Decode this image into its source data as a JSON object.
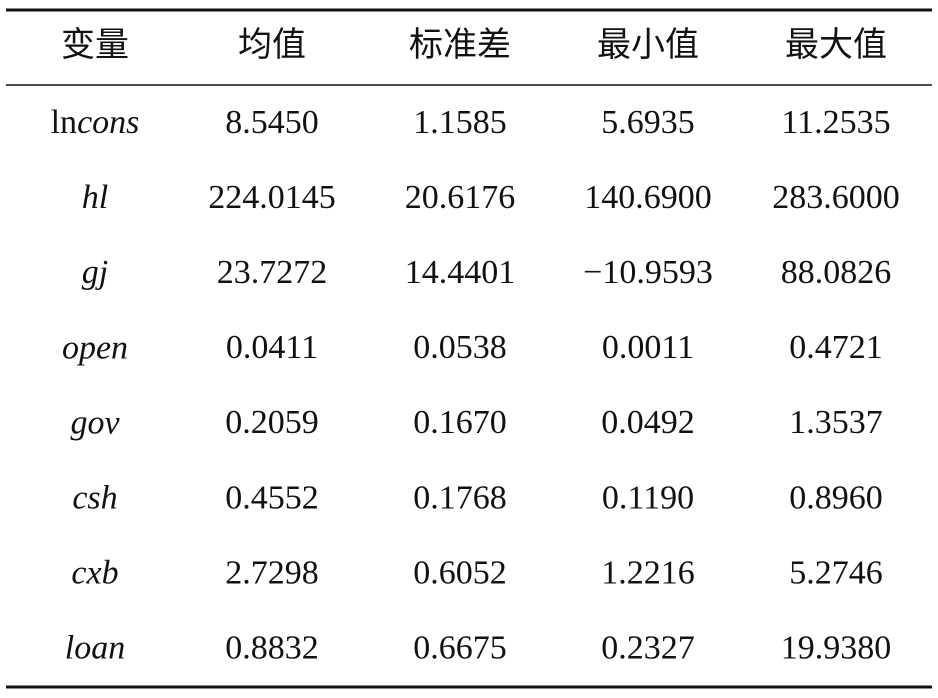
{
  "table": {
    "header": [
      "变量",
      "均值",
      "标准差",
      "最小值",
      "最大值"
    ],
    "rows": [
      [
        {
          "upright": "ln",
          "italic": "cons"
        },
        "8.5450",
        "1.1585",
        "5.6935",
        "11.2535"
      ],
      [
        {
          "italic": "hl"
        },
        "224.0145",
        "20.6176",
        "140.6900",
        "283.6000"
      ],
      [
        {
          "italic": "gj"
        },
        "23.7272",
        "14.4401",
        "−10.9593",
        "88.0826"
      ],
      [
        {
          "italic": "open"
        },
        "0.0411",
        "0.0538",
        "0.0011",
        "0.4721"
      ],
      [
        {
          "italic": "gov"
        },
        "0.2059",
        "0.1670",
        "0.0492",
        "1.3537"
      ],
      [
        {
          "italic": "csh"
        },
        "0.4552",
        "0.1768",
        "0.1190",
        "0.8960"
      ],
      [
        {
          "italic": "cxb"
        },
        "2.7298",
        "0.6052",
        "1.2216",
        "5.2746"
      ],
      [
        {
          "italic": "loan"
        },
        "0.8832",
        "0.6675",
        "0.2327",
        "19.9380"
      ]
    ]
  }
}
